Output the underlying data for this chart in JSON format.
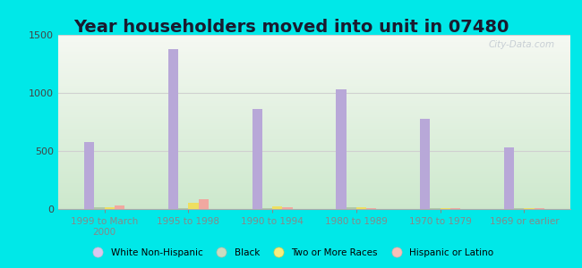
{
  "title": "Year householders moved into unit in 07480",
  "categories": [
    "1999 to March\n2000",
    "1995 to 1998",
    "1990 to 1994",
    "1980 to 1989",
    "1970 to 1979",
    "1969 or earlier"
  ],
  "series": {
    "White Non-Hispanic": [
      575,
      1375,
      865,
      1030,
      780,
      530
    ],
    "Black": [
      12,
      8,
      8,
      15,
      5,
      5
    ],
    "Two or More Races": [
      18,
      52,
      22,
      18,
      4,
      4
    ],
    "Hispanic or Latino": [
      32,
      88,
      12,
      8,
      4,
      4
    ]
  },
  "colors": {
    "White Non-Hispanic": "#b8a8d8",
    "Black": "#b0c8a8",
    "Two or More Races": "#eedf60",
    "Hispanic or Latino": "#f0a8a0"
  },
  "legend_colors": {
    "White Non-Hispanic": "#d8c8f0",
    "Black": "#c8dcc0",
    "Two or More Races": "#f4ee80",
    "Hispanic or Latino": "#f8c0b8"
  },
  "ylim": [
    0,
    1500
  ],
  "yticks": [
    0,
    500,
    1000,
    1500
  ],
  "background_outer": "#00e8e8",
  "background_inner_top": "#f5f8f2",
  "background_inner_bottom": "#cce8cc",
  "grid_color": "#d0d0d0",
  "title_fontsize": 14,
  "watermark": "City-Data.com",
  "bar_width": 0.12,
  "offsets": [
    -1.5,
    -0.5,
    0.5,
    1.5
  ]
}
